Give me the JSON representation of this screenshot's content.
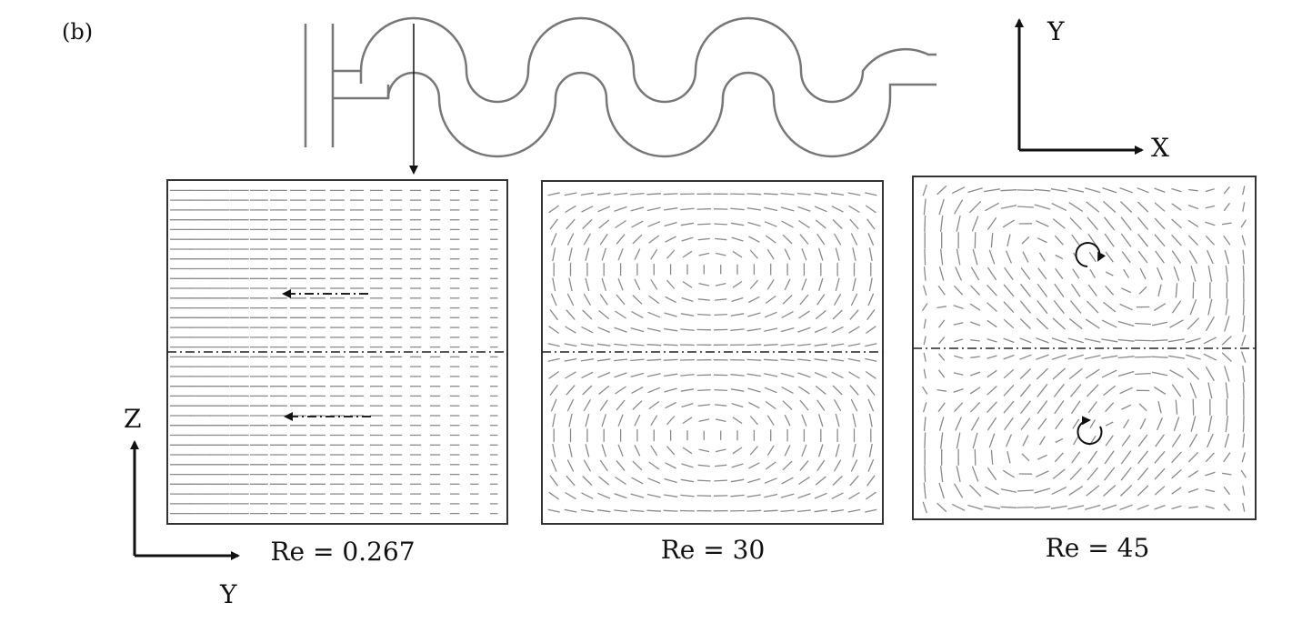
{
  "figure": {
    "panel_label": "(b)",
    "top_axes": {
      "x_label": "X",
      "y_label": "Y"
    },
    "side_axes": {
      "z_label": "Z",
      "y_label": "Y"
    }
  },
  "panels": [
    {
      "id": "re-0267",
      "caption": "Re = 0.267",
      "flow": "uniform-negative-y"
    },
    {
      "id": "re-30",
      "caption": "Re = 30",
      "flow": "two-counter-rotating-cells"
    },
    {
      "id": "re-45",
      "caption": "Re = 45",
      "flow": "four-vortex-pattern"
    }
  ],
  "colors": {
    "ink": "#111111",
    "vector": "#8a8a8a",
    "frame": "#333333"
  }
}
